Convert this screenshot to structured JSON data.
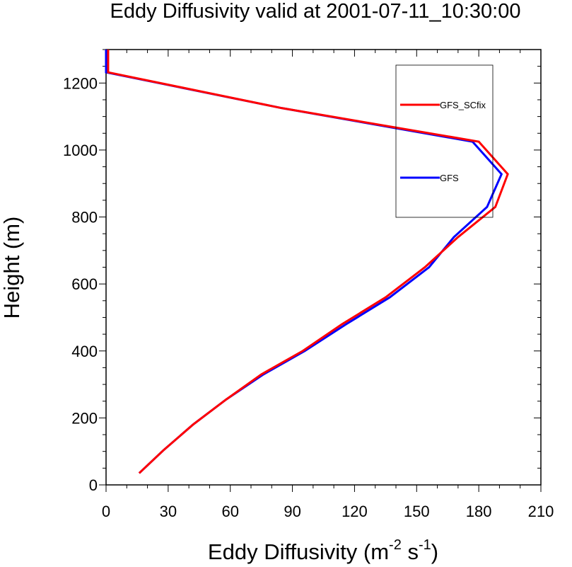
{
  "chart_data": {
    "type": "line",
    "title": "Eddy Diffusivity valid at 2001-07-11_10:30:00",
    "xlabel": {
      "prefix": "Eddy Diffusivity (m",
      "exp1": "-2",
      "mid": " s",
      "exp2": "-1",
      "suffix": ")"
    },
    "ylabel": "Height (m)",
    "xlim": [
      0,
      210
    ],
    "ylim": [
      0,
      1300
    ],
    "xticks": [
      0,
      30,
      60,
      90,
      120,
      150,
      180,
      210
    ],
    "xticklabels": [
      "0",
      "30",
      "60",
      "90",
      "120",
      "150",
      "180",
      "210"
    ],
    "yticks": [
      0,
      200,
      400,
      600,
      800,
      1000,
      1200
    ],
    "yticklabels": [
      "0",
      "200",
      "400",
      "600",
      "800",
      "1000",
      "1200"
    ],
    "grid": false,
    "legend_position": "top-right",
    "series": [
      {
        "name": "GFS_SCfix",
        "color": "#ff0000",
        "points": [
          {
            "x": 16,
            "y": 35
          },
          {
            "x": 28,
            "y": 105
          },
          {
            "x": 42,
            "y": 180
          },
          {
            "x": 58,
            "y": 255
          },
          {
            "x": 75,
            "y": 330
          },
          {
            "x": 95,
            "y": 400
          },
          {
            "x": 114,
            "y": 480
          },
          {
            "x": 135,
            "y": 560
          },
          {
            "x": 154,
            "y": 650
          },
          {
            "x": 170,
            "y": 740
          },
          {
            "x": 188,
            "y": 830
          },
          {
            "x": 194,
            "y": 928
          },
          {
            "x": 180,
            "y": 1025
          },
          {
            "x": 85,
            "y": 1125
          },
          {
            "x": 1,
            "y": 1232
          },
          {
            "x": 1,
            "y": 1300
          }
        ]
      },
      {
        "name": "GFS",
        "color": "#0000ff",
        "points": [
          {
            "x": 16,
            "y": 35
          },
          {
            "x": 28,
            "y": 105
          },
          {
            "x": 42,
            "y": 180
          },
          {
            "x": 58,
            "y": 255
          },
          {
            "x": 76,
            "y": 330
          },
          {
            "x": 96,
            "y": 400
          },
          {
            "x": 116,
            "y": 480
          },
          {
            "x": 137,
            "y": 560
          },
          {
            "x": 156,
            "y": 650
          },
          {
            "x": 168,
            "y": 740
          },
          {
            "x": 184,
            "y": 830
          },
          {
            "x": 191,
            "y": 928
          },
          {
            "x": 177,
            "y": 1025
          },
          {
            "x": 85,
            "y": 1125
          },
          {
            "x": 0,
            "y": 1232
          },
          {
            "x": 0,
            "y": 1300
          }
        ]
      }
    ]
  }
}
